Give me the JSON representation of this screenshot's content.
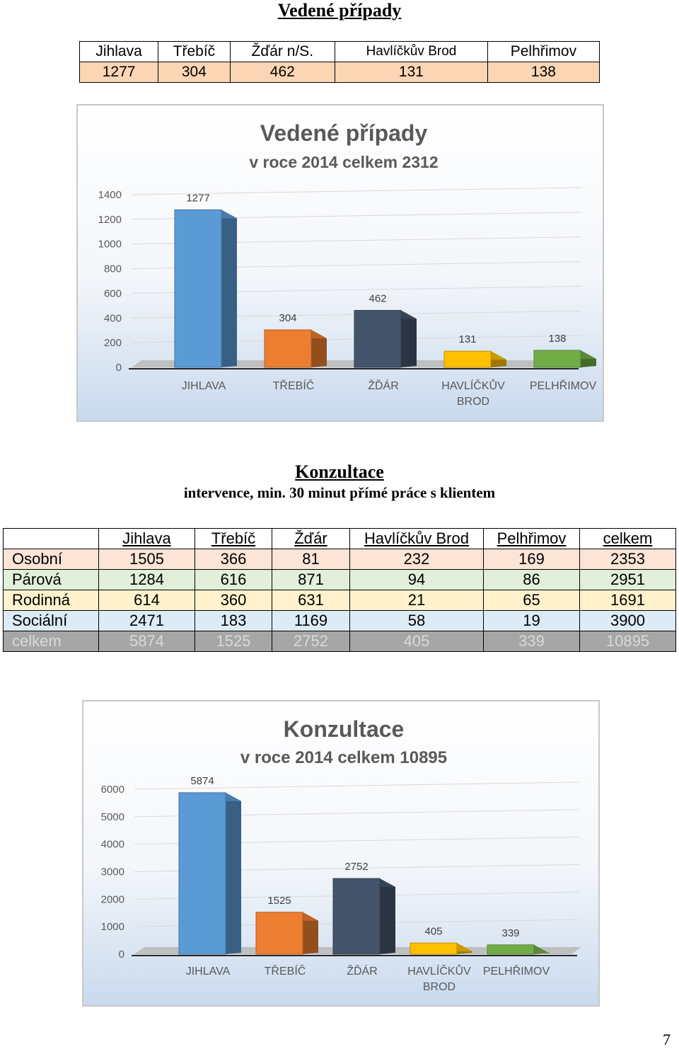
{
  "section1": {
    "heading": "Vedené případy",
    "table": {
      "headers": [
        "Jihlava",
        "Třebíč",
        "Žďár n/S.",
        "Havlíčkův  Brod",
        "Pelhřimov"
      ],
      "values": [
        "1277",
        "304",
        "462",
        "131",
        "138"
      ]
    }
  },
  "section2": {
    "heading": "Konzultace",
    "subheading": "intervence, min. 30 minut přímé práce s klientem",
    "table": {
      "headers": [
        "",
        "Jihlava",
        "Třebíč",
        "Žďár",
        "Havlíčkův Brod",
        "Pelhřimov",
        "celkem"
      ],
      "rows": [
        [
          "Osobní",
          "1505",
          "366",
          "81",
          "232",
          "169",
          "2353"
        ],
        [
          "Párová",
          "1284",
          "616",
          "871",
          "94",
          "86",
          "2951"
        ],
        [
          "Rodinná",
          "614",
          "360",
          "631",
          "21",
          "65",
          "1691"
        ],
        [
          "Sociální",
          "2471",
          "183",
          "1169",
          "58",
          "19",
          "3900"
        ],
        [
          "celkem",
          "5874",
          "1525",
          "2752",
          "405",
          "339",
          "10895"
        ]
      ]
    }
  },
  "page_number": "7",
  "chart_data": [
    {
      "type": "bar",
      "title": "Vedené případy",
      "subtitle": "v roce 2014 celkem 2312",
      "categories": [
        "JIHLAVA",
        "TŘEBÍČ",
        "ŽĎÁR",
        "HAVLÍČKŮV BROD",
        "PELHŘIMOV"
      ],
      "values": [
        1277,
        304,
        462,
        131,
        138
      ],
      "ylim": [
        0,
        1400
      ],
      "yticks": [
        0,
        200,
        400,
        600,
        800,
        1000,
        1200,
        1400
      ],
      "colors": [
        "#5b9bd5",
        "#ed7d31",
        "#44546a",
        "#ffc000",
        "#70ad47"
      ],
      "grid": true,
      "data_labels": true
    },
    {
      "type": "bar",
      "title": "Konzultace",
      "subtitle": "v roce 2014 celkem 10895",
      "categories": [
        "JIHLAVA",
        "TŘEBÍČ",
        "ŽĎÁR",
        "HAVLÍČKŮV BROD",
        "PELHŘIMOV"
      ],
      "values": [
        5874,
        1525,
        2752,
        405,
        339
      ],
      "ylim": [
        0,
        6000
      ],
      "yticks": [
        0,
        1000,
        2000,
        3000,
        4000,
        5000,
        6000
      ],
      "colors": [
        "#5b9bd5",
        "#ed7d31",
        "#44546a",
        "#ffc000",
        "#70ad47"
      ],
      "grid": true,
      "data_labels": true
    }
  ]
}
